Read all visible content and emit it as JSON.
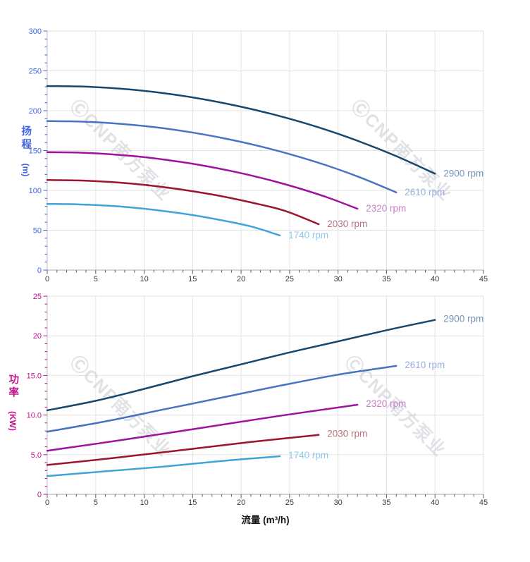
{
  "x_axis_title": "流量 (m³/h)",
  "watermark": {
    "text": "ⒸCNP南方泵业",
    "color": "#c9ccd2"
  },
  "chart_data": [
    {
      "type": "line",
      "title": "",
      "ylabel": "扬程",
      "ylabel_unit": "(m)",
      "xlabel": "流量 (m³/h)",
      "xlim": [
        0,
        45
      ],
      "ylim": [
        0,
        300
      ],
      "grid": true,
      "legend_position": "end-of-line",
      "axis_color": "#4064e4",
      "x_tick_color": "#3c3c3c",
      "x_minor_step": 1,
      "y_minor_step": 10,
      "x_ticks": [
        {
          "v": 0,
          "label": "0"
        },
        {
          "v": 5,
          "label": "5"
        },
        {
          "v": 10,
          "label": "10"
        },
        {
          "v": 15,
          "label": "15"
        },
        {
          "v": 20,
          "label": "20"
        },
        {
          "v": 25,
          "label": "25"
        },
        {
          "v": 30,
          "label": "30"
        },
        {
          "v": 35,
          "label": "35"
        },
        {
          "v": 40,
          "label": "40"
        },
        {
          "v": 45,
          "label": "45"
        }
      ],
      "y_ticks": [
        {
          "v": 0,
          "label": "0"
        },
        {
          "v": 50,
          "label": "50"
        },
        {
          "v": 100,
          "label": "100"
        },
        {
          "v": 150,
          "label": "150"
        },
        {
          "v": 200,
          "label": "200"
        },
        {
          "v": 250,
          "label": "250"
        },
        {
          "v": 300,
          "label": "300"
        }
      ],
      "series": [
        {
          "name": "2900 rpm",
          "color": "#16476f",
          "label_color": "#7494b9",
          "x": [
            0,
            4,
            8,
            12,
            16,
            20,
            24,
            28,
            32,
            36,
            40
          ],
          "y": [
            231,
            230.2,
            227.2,
            222,
            214.6,
            205,
            193.2,
            179,
            162.3,
            143,
            121
          ]
        },
        {
          "name": "2610 rpm",
          "color": "#4674c2",
          "label_color": "#98aede",
          "x": [
            0,
            3.6,
            7.2,
            10.8,
            14.4,
            18,
            21.6,
            25.2,
            28.8,
            32.4,
            36
          ],
          "y": [
            187,
            186.3,
            183.9,
            179.7,
            173.7,
            165.9,
            156.4,
            144.9,
            131.4,
            115.7,
            97.5
          ]
        },
        {
          "name": "2320 rpm",
          "color": "#9e129e",
          "label_color": "#c77fc4",
          "x": [
            0,
            3.2,
            6.4,
            9.6,
            12.8,
            16,
            19.2,
            22.4,
            25.6,
            28.8,
            32
          ],
          "y": [
            148,
            147.4,
            145.5,
            142.2,
            137.4,
            131.3,
            123.7,
            114.7,
            104,
            91.6,
            77
          ]
        },
        {
          "name": "2030 rpm",
          "color": "#9c142f",
          "label_color": "#b8707c",
          "x": [
            0,
            3.5,
            7,
            10.5,
            14,
            17.5,
            21,
            24.5,
            28
          ],
          "y": [
            113,
            112.4,
            110.2,
            106.3,
            100.8,
            93.8,
            85,
            74.4,
            57.5
          ]
        },
        {
          "name": "1740 rpm",
          "color": "#3ea4da",
          "label_color": "#8ecbee",
          "x": [
            0,
            3,
            6,
            9,
            12,
            15,
            18,
            21,
            24
          ],
          "y": [
            83,
            82.6,
            81,
            78.2,
            74.2,
            69,
            62.5,
            54.8,
            43.5
          ]
        }
      ]
    },
    {
      "type": "line",
      "title": "",
      "ylabel": "功率",
      "ylabel_unit": "(KW)",
      "xlabel": "流量 (m³/h)",
      "xlim": [
        0,
        45
      ],
      "ylim": [
        0,
        25
      ],
      "grid": true,
      "legend_position": "end-of-line",
      "axis_color": "#c2128d",
      "x_tick_color": "#3c3c3c",
      "x_minor_step": 1,
      "y_minor_step": 1,
      "x_ticks": [
        {
          "v": 0,
          "label": "0"
        },
        {
          "v": 5,
          "label": "5"
        },
        {
          "v": 10,
          "label": "10"
        },
        {
          "v": 15,
          "label": "15"
        },
        {
          "v": 20,
          "label": "20"
        },
        {
          "v": 25,
          "label": "25"
        },
        {
          "v": 30,
          "label": "30"
        },
        {
          "v": 35,
          "label": "35"
        },
        {
          "v": 40,
          "label": "40"
        },
        {
          "v": 45,
          "label": "45"
        }
      ],
      "y_ticks": [
        {
          "v": 0,
          "label": "0"
        },
        {
          "v": 5,
          "label": "5.0"
        },
        {
          "v": 10,
          "label": "10.0"
        },
        {
          "v": 15,
          "label": "15.0"
        },
        {
          "v": 20,
          "label": "20"
        },
        {
          "v": 25,
          "label": "25"
        }
      ],
      "series": [
        {
          "name": "2900 rpm",
          "color": "#16476f",
          "label_color": "#7494b9",
          "x": [
            0,
            5,
            10,
            15,
            20,
            25,
            30,
            35,
            40
          ],
          "y": [
            10.6,
            11.8,
            13.3,
            14.9,
            16.4,
            17.9,
            19.3,
            20.7,
            22
          ]
        },
        {
          "name": "2610 rpm",
          "color": "#4674c2",
          "label_color": "#98aede",
          "x": [
            0,
            6,
            12,
            18,
            24,
            30,
            36
          ],
          "y": [
            7.9,
            9.2,
            10.7,
            12.2,
            13.7,
            15.1,
            16.2
          ]
        },
        {
          "name": "2320 rpm",
          "color": "#9e129e",
          "label_color": "#c77fc4",
          "x": [
            0,
            8,
            16,
            24,
            32
          ],
          "y": [
            5.5,
            6.9,
            8.4,
            9.9,
            11.3
          ]
        },
        {
          "name": "2030 rpm",
          "color": "#9c142f",
          "label_color": "#b8707c",
          "x": [
            0,
            7,
            14,
            21,
            28
          ],
          "y": [
            3.7,
            4.6,
            5.6,
            6.6,
            7.5
          ]
        },
        {
          "name": "1740 rpm",
          "color": "#3ea4da",
          "label_color": "#8ecbee",
          "x": [
            0,
            6,
            12,
            18,
            24
          ],
          "y": [
            2.3,
            2.9,
            3.5,
            4.2,
            4.8
          ]
        }
      ]
    }
  ]
}
